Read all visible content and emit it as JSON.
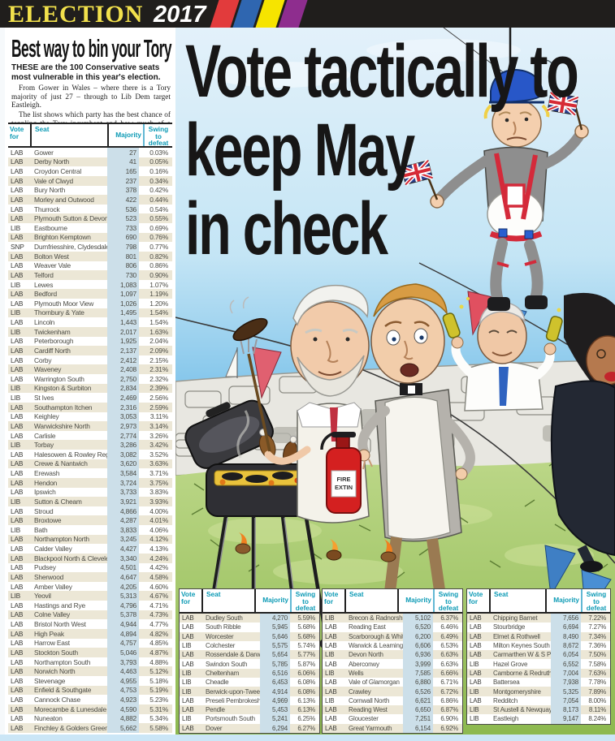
{
  "banner": {
    "title": "ELECTION",
    "year": "2017",
    "stripe_colors": [
      "#e23b3c",
      "#2f66b0",
      "#f6e400",
      "#8e2d8e"
    ]
  },
  "left_panel": {
    "headline": "Best way to bin your Tory",
    "intro_bold": "THESE are the 100 Conservative seats most vulnerable in this year's election.",
    "para1": "From Gower in Wales – where there is a Tory majority of just 27 – through to Lib Dem target Eastleigh.",
    "para2": "The list shows which party has the best chance of toppling the Tory incumbent and how much of a swing they would need to do it."
  },
  "main_headline": {
    "line1": "Vote tactically to",
    "line2": "keep May",
    "line3": "in check"
  },
  "table_headers": {
    "vote_for": "Vote for",
    "seat": "Seat",
    "majority": "Majority",
    "swing": "Swing to defeat"
  },
  "cartoon": {
    "fire_label_line1": "FIRE",
    "fire_label_line2": "EXTIN"
  },
  "colors": {
    "header_teal": "#0c9ab5",
    "row_cream": "#ece7d6",
    "majority_band": "#ccdfe9",
    "banner_yellow": "#f2e14c",
    "sky_blue": "#7ec3ea",
    "grass_green": "#a8c868"
  },
  "tables": {
    "main": [
      {
        "party": "LAB",
        "seat": "Gower",
        "majority": "27",
        "swing": "0.03%"
      },
      {
        "party": "LAB",
        "seat": "Derby North",
        "majority": "41",
        "swing": "0.05%"
      },
      {
        "party": "LAB",
        "seat": "Croydon Central",
        "majority": "165",
        "swing": "0.16%"
      },
      {
        "party": "LAB",
        "seat": "Vale of Clwyd",
        "majority": "237",
        "swing": "0.34%"
      },
      {
        "party": "LAB",
        "seat": "Bury North",
        "majority": "378",
        "swing": "0.42%"
      },
      {
        "party": "LAB",
        "seat": "Morley and Outwood",
        "majority": "422",
        "swing": "0.44%"
      },
      {
        "party": "LAB",
        "seat": "Thurrock",
        "majority": "536",
        "swing": "0.54%"
      },
      {
        "party": "LAB",
        "seat": "Plymouth Sutton & Devonport",
        "majority": "523",
        "swing": "0.55%"
      },
      {
        "party": "LIB",
        "seat": "Eastbourne",
        "majority": "733",
        "swing": "0.69%"
      },
      {
        "party": "LAB",
        "seat": "Brighton Kemptown",
        "majority": "690",
        "swing": "0.76%"
      },
      {
        "party": "SNP",
        "seat": "Dumfriesshire, Clydesdale, Tweeddale",
        "majority": "798",
        "swing": "0.77%"
      },
      {
        "party": "LAB",
        "seat": "Bolton West",
        "majority": "801",
        "swing": "0.82%"
      },
      {
        "party": "LAB",
        "seat": "Weaver Vale",
        "majority": "806",
        "swing": "0.86%"
      },
      {
        "party": "LAB",
        "seat": "Telford",
        "majority": "730",
        "swing": "0.90%"
      },
      {
        "party": "LIB",
        "seat": "Lewes",
        "majority": "1,083",
        "swing": "1.07%"
      },
      {
        "party": "LAB",
        "seat": "Bedford",
        "majority": "1,097",
        "swing": "1.19%"
      },
      {
        "party": "LAB",
        "seat": "Plymouth Moor View",
        "majority": "1,026",
        "swing": "1.20%"
      },
      {
        "party": "LIB",
        "seat": "Thornbury & Yate",
        "majority": "1,495",
        "swing": "1.54%"
      },
      {
        "party": "LAB",
        "seat": "Lincoln",
        "majority": "1,443",
        "swing": "1.54%"
      },
      {
        "party": "LIB",
        "seat": "Twickenham",
        "majority": "2,017",
        "swing": "1.63%"
      },
      {
        "party": "LAB",
        "seat": "Peterborough",
        "majority": "1,925",
        "swing": "2.04%"
      },
      {
        "party": "LAB",
        "seat": "Cardiff North",
        "majority": "2,137",
        "swing": "2.09%"
      },
      {
        "party": "LAB",
        "seat": "Corby",
        "majority": "2,412",
        "swing": "2.15%"
      },
      {
        "party": "LAB",
        "seat": "Waveney",
        "majority": "2,408",
        "swing": "2.31%"
      },
      {
        "party": "LAB",
        "seat": "Warrington South",
        "majority": "2,750",
        "swing": "2.32%"
      },
      {
        "party": "LIB",
        "seat": "Kingston & Surbiton",
        "majority": "2,834",
        "swing": "2.39%"
      },
      {
        "party": "LIB",
        "seat": "St Ives",
        "majority": "2,469",
        "swing": "2.56%"
      },
      {
        "party": "LAB",
        "seat": "Southampton Itchen",
        "majority": "2,316",
        "swing": "2.59%"
      },
      {
        "party": "LAB",
        "seat": "Keighley",
        "majority": "3,053",
        "swing": "3.11%"
      },
      {
        "party": "LAB",
        "seat": "Warwickshire North",
        "majority": "2,973",
        "swing": "3.14%"
      },
      {
        "party": "LAB",
        "seat": "Carlisle",
        "majority": "2,774",
        "swing": "3.26%"
      },
      {
        "party": "LIB",
        "seat": "Torbay",
        "majority": "3,286",
        "swing": "3.42%"
      },
      {
        "party": "LAB",
        "seat": "Halesowen & Rowley Regis",
        "majority": "3,082",
        "swing": "3.52%"
      },
      {
        "party": "LAB",
        "seat": "Crewe & Nantwich",
        "majority": "3,620",
        "swing": "3.63%"
      },
      {
        "party": "LAB",
        "seat": "Erewash",
        "majority": "3,584",
        "swing": "3.71%"
      },
      {
        "party": "LAB",
        "seat": "Hendon",
        "majority": "3,724",
        "swing": "3.75%"
      },
      {
        "party": "LAB",
        "seat": "Ipswich",
        "majority": "3,733",
        "swing": "3.83%"
      },
      {
        "party": "LIB",
        "seat": "Sutton & Cheam",
        "majority": "3,921",
        "swing": "3.93%"
      },
      {
        "party": "LAB",
        "seat": "Stroud",
        "majority": "4,866",
        "swing": "4.00%"
      },
      {
        "party": "LAB",
        "seat": "Broxtowe",
        "majority": "4,287",
        "swing": "4.01%"
      },
      {
        "party": "LIB",
        "seat": "Bath",
        "majority": "3,833",
        "swing": "4.06%"
      },
      {
        "party": "LAB",
        "seat": "Northampton North",
        "majority": "3,245",
        "swing": "4.12%"
      },
      {
        "party": "LAB",
        "seat": "Calder Valley",
        "majority": "4,427",
        "swing": "4.13%"
      },
      {
        "party": "LAB",
        "seat": "Blackpool North & Cleveleys",
        "majority": "3,340",
        "swing": "4.24%"
      },
      {
        "party": "LAB",
        "seat": "Pudsey",
        "majority": "4,501",
        "swing": "4.42%"
      },
      {
        "party": "LAB",
        "seat": "Sherwood",
        "majority": "4,647",
        "swing": "4.58%"
      },
      {
        "party": "LAB",
        "seat": "Amber Valley",
        "majority": "4,205",
        "swing": "4.60%"
      },
      {
        "party": "LIB",
        "seat": "Yeovil",
        "majority": "5,313",
        "swing": "4.67%"
      },
      {
        "party": "LAB",
        "seat": "Hastings and Rye",
        "majority": "4,796",
        "swing": "4.71%"
      },
      {
        "party": "LAB",
        "seat": "Colne Valley",
        "majority": "5,378",
        "swing": "4.73%"
      },
      {
        "party": "LAB",
        "seat": "Bristol North West",
        "majority": "4,944",
        "swing": "4.77%"
      },
      {
        "party": "LAB",
        "seat": "High Peak",
        "majority": "4,894",
        "swing": "4.82%"
      },
      {
        "party": "LAB",
        "seat": "Harrow East",
        "majority": "4,757",
        "swing": "4.85%"
      },
      {
        "party": "LAB",
        "seat": "Stockton South",
        "majority": "5,046",
        "swing": "4.87%"
      },
      {
        "party": "LAB",
        "seat": "Northampton South",
        "majority": "3,793",
        "swing": "4.88%"
      },
      {
        "party": "LAB",
        "seat": "Norwich North",
        "majority": "4,463",
        "swing": "5.12%"
      },
      {
        "party": "LAB",
        "seat": "Stevenage",
        "majority": "4,955",
        "swing": "5.18%"
      },
      {
        "party": "LAB",
        "seat": "Enfield & Southgate",
        "majority": "4,753",
        "swing": "5.19%"
      },
      {
        "party": "LAB",
        "seat": "Cannock Chase",
        "majority": "4,923",
        "swing": "5.23%"
      },
      {
        "party": "LAB",
        "seat": "Morecambe & Lunesdale",
        "majority": "4,590",
        "swing": "5.31%"
      },
      {
        "party": "LAB",
        "seat": "Nuneaton",
        "majority": "4,882",
        "swing": "5.34%"
      },
      {
        "party": "LAB",
        "seat": "Finchley & Golders Green",
        "majority": "5,662",
        "swing": "5.58%"
      }
    ],
    "bottom_left": [
      {
        "party": "LAB",
        "seat": "Dudley South",
        "majority": "4,270",
        "swing": "5.59%"
      },
      {
        "party": "LAB",
        "seat": "South Ribble",
        "majority": "5,945",
        "swing": "5.68%"
      },
      {
        "party": "LAB",
        "seat": "Worcester",
        "majority": "5,646",
        "swing": "5.68%"
      },
      {
        "party": "LIB",
        "seat": "Colchester",
        "majority": "5,575",
        "swing": "5.74%"
      },
      {
        "party": "LAB",
        "seat": "Rossendale & Darwen",
        "majority": "5,654",
        "swing": "5.77%"
      },
      {
        "party": "LAB",
        "seat": "Swindon South",
        "majority": "5,785",
        "swing": "5.87%"
      },
      {
        "party": "LIB",
        "seat": "Cheltenham",
        "majority": "6,516",
        "swing": "6.06%"
      },
      {
        "party": "LIB",
        "seat": "Cheadle",
        "majority": "6,453",
        "swing": "6.08%"
      },
      {
        "party": "LIB",
        "seat": "Berwick-upon-Tweed",
        "majority": "4,914",
        "swing": "6.08%"
      },
      {
        "party": "LAB",
        "seat": "Preseli Pembrokeshire",
        "majority": "4,969",
        "swing": "6.13%"
      },
      {
        "party": "LAB",
        "seat": "Pendle",
        "majority": "5,453",
        "swing": "6.13%"
      },
      {
        "party": "LIB",
        "seat": "Portsmouth South",
        "majority": "5,241",
        "swing": "6.25%"
      },
      {
        "party": "LAB",
        "seat": "Dover",
        "majority": "6,294",
        "swing": "6.27%"
      }
    ],
    "bottom_middle": [
      {
        "party": "LIB",
        "seat": "Brecon & Radnorshire",
        "majority": "5,102",
        "swing": "6.37%"
      },
      {
        "party": "LAB",
        "seat": "Reading East",
        "majority": "6,520",
        "swing": "6.46%"
      },
      {
        "party": "LAB",
        "seat": "Scarborough & Whitby",
        "majority": "6,200",
        "swing": "6.49%"
      },
      {
        "party": "LAB",
        "seat": "Warwick & Leamington",
        "majority": "6,606",
        "swing": "6.53%"
      },
      {
        "party": "LIB",
        "seat": "Devon North",
        "majority": "6,936",
        "swing": "6.63%"
      },
      {
        "party": "LAB",
        "seat": "Aberconwy",
        "majority": "3,999",
        "swing": "6.63%"
      },
      {
        "party": "LIB",
        "seat": "Wells",
        "majority": "7,585",
        "swing": "6.66%"
      },
      {
        "party": "LAB",
        "seat": "Vale of Glamorgan",
        "majority": "6,880",
        "swing": "6.71%"
      },
      {
        "party": "LAB",
        "seat": "Crawley",
        "majority": "6,526",
        "swing": "6.72%"
      },
      {
        "party": "LIB",
        "seat": "Cornwall North",
        "majority": "6,621",
        "swing": "6.86%"
      },
      {
        "party": "LAB",
        "seat": "Reading West",
        "majority": "6,650",
        "swing": "6.87%"
      },
      {
        "party": "LAB",
        "seat": "Gloucester",
        "majority": "7,251",
        "swing": "6.90%"
      },
      {
        "party": "LAB",
        "seat": "Great Yarmouth",
        "majority": "6,154",
        "swing": "6.92%"
      }
    ],
    "bottom_right": [
      {
        "party": "LAB",
        "seat": "Chipping Barnet",
        "majority": "7,656",
        "swing": "7.22%"
      },
      {
        "party": "LAB",
        "seat": "Stourbridge",
        "majority": "6,694",
        "swing": "7.27%"
      },
      {
        "party": "LAB",
        "seat": "Elmet & Rothwell",
        "majority": "8,490",
        "swing": "7.34%"
      },
      {
        "party": "LAB",
        "seat": "Milton Keynes South",
        "majority": "8,672",
        "swing": "7.36%"
      },
      {
        "party": "LAB",
        "seat": "Carmarthen W & S Pembrokes",
        "majority": "6,054",
        "swing": "7.50%"
      },
      {
        "party": "LIB",
        "seat": "Hazel Grove",
        "majority": "6,552",
        "swing": "7.58%"
      },
      {
        "party": "LAB",
        "seat": "Camborne & Redruth",
        "majority": "7,004",
        "swing": "7.63%"
      },
      {
        "party": "LAB",
        "seat": "Battersea",
        "majority": "7,938",
        "swing": "7.78%"
      },
      {
        "party": "LIB",
        "seat": "Montgomeryshire",
        "majority": "5,325",
        "swing": "7.89%"
      },
      {
        "party": "LAB",
        "seat": "Redditch",
        "majority": "7,054",
        "swing": "8.00%"
      },
      {
        "party": "LIB",
        "seat": "St Austell & Newquay",
        "majority": "8,173",
        "swing": "8.11%"
      },
      {
        "party": "LIB",
        "seat": "Eastleigh",
        "majority": "9,147",
        "swing": "8.24%"
      }
    ]
  }
}
